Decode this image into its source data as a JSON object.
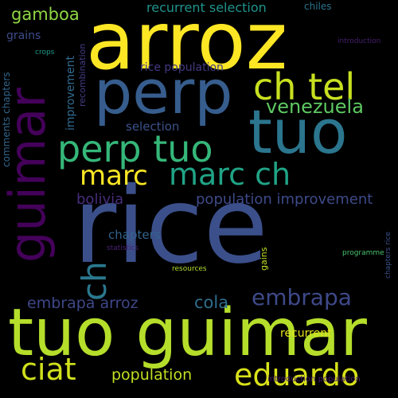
{
  "words": [
    {
      "text": "rice",
      "color": "#3b4f8a"
    },
    {
      "text": "arroz",
      "color": "#fde725"
    },
    {
      "text": "tuo guimar",
      "color": "#b5de2b"
    },
    {
      "text": "perp",
      "color": "#365d8d"
    },
    {
      "text": "tuo",
      "color": "#2b758e"
    },
    {
      "text": "guimar",
      "color": "#44015a"
    },
    {
      "text": "perp tuo",
      "color": "#35b779"
    },
    {
      "text": "ch tel",
      "color": "#c8e020"
    },
    {
      "text": "marc",
      "color": "#fde725"
    },
    {
      "text": "marc ch",
      "color": "#20a486"
    },
    {
      "text": "ch",
      "color": "#2a788e"
    },
    {
      "text": "venezuela",
      "color": "#5ec962"
    },
    {
      "text": "eduardo",
      "color": "#d8e219"
    },
    {
      "text": "ciat",
      "color": "#d0e11c"
    },
    {
      "text": "embrapa",
      "color": "#3e4989"
    },
    {
      "text": "gamboa",
      "color": "#8fd744"
    },
    {
      "text": "embrapa arroz",
      "color": "#3f4788"
    },
    {
      "text": "cola",
      "color": "#2e6f8e"
    },
    {
      "text": "population",
      "color": "#c2df23"
    },
    {
      "text": "population improvement",
      "color": "#3e4a89"
    },
    {
      "text": "selection",
      "color": "#3b528b"
    },
    {
      "text": "chapters",
      "color": "#33638d"
    },
    {
      "text": "bolivia",
      "color": "#472d7b"
    },
    {
      "text": "recurrent selection",
      "color": "#1f948c"
    },
    {
      "text": "improvement",
      "color": "#306a8e"
    },
    {
      "text": "rice population",
      "color": "#443a83"
    },
    {
      "text": "recombination",
      "color": "#433e85"
    },
    {
      "text": "chiles",
      "color": "#2b748e"
    },
    {
      "text": "recurrent",
      "color": "#e5e419"
    },
    {
      "text": "grains",
      "color": "#3e4c8a"
    },
    {
      "text": "comments chapters",
      "color": "#31668e"
    },
    {
      "text": "crops",
      "color": "#1f9a8a"
    },
    {
      "text": "introduction",
      "color": "#481f70"
    },
    {
      "text": "gains",
      "color": "#c0df25"
    },
    {
      "text": "resources",
      "color": "#b0dd2f"
    },
    {
      "text": "markers",
      "color": "#3a548c"
    },
    {
      "text": "statistics",
      "color": "#482173"
    },
    {
      "text": "programme",
      "color": "#4ac16d"
    },
    {
      "text": "chapters rice",
      "color": "#3b518b"
    },
    {
      "text": "introduction population",
      "color": "#481b6d"
    }
  ]
}
